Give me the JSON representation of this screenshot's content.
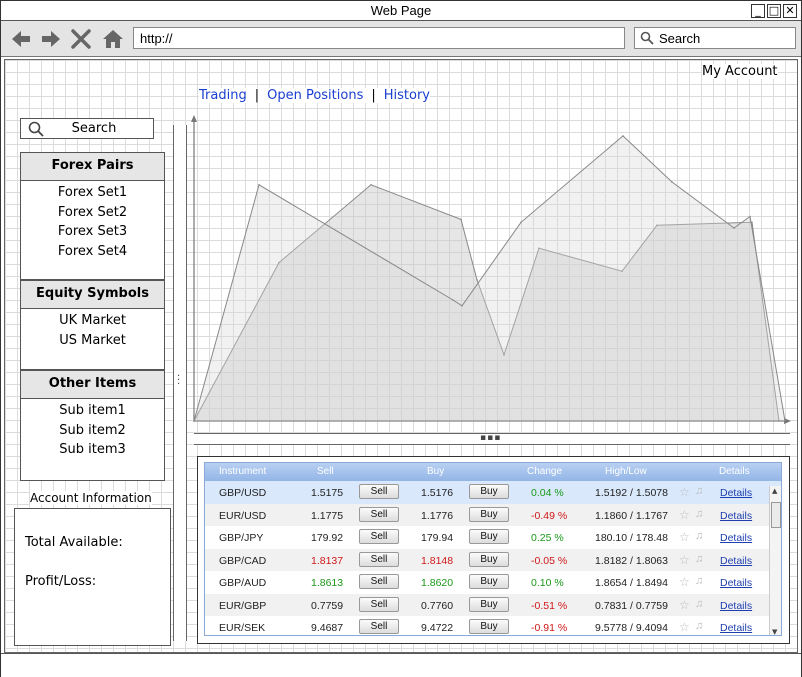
{
  "window": {
    "title": "Web Page"
  },
  "browser": {
    "url": "http://",
    "search_placeholder": "Search"
  },
  "header": {
    "my_account": "My Account"
  },
  "nav": {
    "trading": "Trading",
    "open_positions": "Open Positions",
    "history": "History",
    "separator": "|"
  },
  "sidebar": {
    "search_label": "Search",
    "forex": {
      "title": "Forex Pairs",
      "items": [
        "Forex Set1",
        "Forex Set2",
        "Forex Set3",
        "Forex Set4"
      ]
    },
    "equity": {
      "title": "Equity Symbols",
      "items": [
        "UK Market",
        "US Market"
      ]
    },
    "other": {
      "title": "Other Items",
      "items": [
        "Sub item1",
        "Sub item2",
        "Sub item3"
      ]
    }
  },
  "account": {
    "title": "Account Information",
    "total_available": "Total Available:",
    "profit_loss": "Profit/Loss:"
  },
  "chart_data": {
    "type": "area",
    "title": "",
    "xlabel": "",
    "ylabel": "",
    "series": [
      {
        "values": [
          0,
          55,
          82,
          70,
          49,
          23,
          60,
          52,
          68,
          69,
          0
        ]
      },
      {
        "values": [
          0,
          82,
          42,
          40,
          69,
          99,
          83,
          67,
          71,
          0
        ]
      }
    ]
  },
  "grid": {
    "columns": [
      "Instrument",
      "Sell",
      "Buy",
      "Change",
      "High/Low",
      "Details"
    ],
    "sell_label": "Sell",
    "buy_label": "Buy",
    "details_label": "Details",
    "rows": [
      {
        "instrument": "GBP/USD",
        "sell": "1.5175",
        "buy": "1.5176",
        "change": "0.04 %",
        "highlow": "1.5192 / 1.5078",
        "dir": "pos",
        "price_color": ""
      },
      {
        "instrument": "EUR/USD",
        "sell": "1.1775",
        "buy": "1.1776",
        "change": "-0.49 %",
        "highlow": "1.1860 / 1.1767",
        "dir": "neg",
        "price_color": ""
      },
      {
        "instrument": "GBP/JPY",
        "sell": "179.92",
        "buy": "179.94",
        "change": "0.25 %",
        "highlow": "180.10 / 178.48",
        "dir": "pos",
        "price_color": ""
      },
      {
        "instrument": "GBP/CAD",
        "sell": "1.8137",
        "buy": "1.8148",
        "change": "-0.05 %",
        "highlow": "1.8182 / 1.8063",
        "dir": "neg",
        "price_color": "neg"
      },
      {
        "instrument": "GBP/AUD",
        "sell": "1.8613",
        "buy": "1.8620",
        "change": "0.10 %",
        "highlow": "1.8654 / 1.8494",
        "dir": "pos",
        "price_color": "pos"
      },
      {
        "instrument": "EUR/GBP",
        "sell": "0.7759",
        "buy": "0.7760",
        "change": "-0.51 %",
        "highlow": "0.7831 / 0.7759",
        "dir": "neg",
        "price_color": ""
      },
      {
        "instrument": "EUR/SEK",
        "sell": "9.4687",
        "buy": "9.4722",
        "change": "-0.91 %",
        "highlow": "9.5778 / 9.4094",
        "dir": "neg",
        "price_color": ""
      }
    ]
  },
  "icons": {
    "back": "arrow-left-icon",
    "forward": "arrow-right-icon",
    "stop": "close-icon",
    "home": "home-icon",
    "search": "search-icon",
    "star": "star-icon",
    "bell": "bell-icon"
  }
}
